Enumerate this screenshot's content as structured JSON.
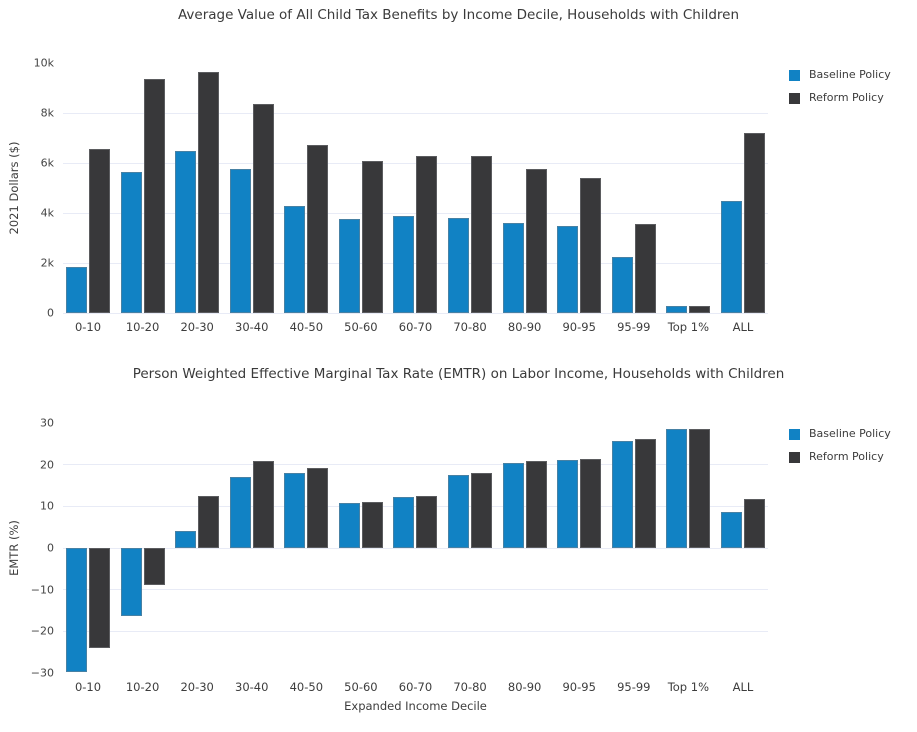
{
  "colors": {
    "baseline": "#1182c4",
    "reform": "#38383a",
    "grid": "#e8ebf6",
    "title_text": "#3a3a3a",
    "tick_text": "#444444"
  },
  "chart_data": [
    {
      "type": "bar",
      "title": "Average Value of All Child Tax Benefits by Income Decile, Households with Children",
      "ylabel": "2021 Dollars ($)",
      "xlabel": "",
      "grid": true,
      "legend_position": "right",
      "categories": [
        "0-10",
        "10-20",
        "20-30",
        "30-40",
        "40-50",
        "50-60",
        "60-70",
        "70-80",
        "80-90",
        "90-95",
        "95-99",
        "Top 1%",
        "ALL"
      ],
      "series": [
        {
          "name": "Baseline Policy",
          "color": "#1182c4",
          "values": [
            1850,
            5650,
            6500,
            5750,
            4300,
            3750,
            3890,
            3800,
            3590,
            3500,
            2240,
            280,
            4480
          ]
        },
        {
          "name": "Reform Policy",
          "color": "#38383a",
          "values": [
            6550,
            9350,
            9650,
            8350,
            6720,
            6100,
            6280,
            6300,
            5760,
            5400,
            3560,
            300,
            7200
          ]
        }
      ],
      "ylim": [
        0,
        10000
      ],
      "yticks": [
        {
          "v": 0,
          "label": "0"
        },
        {
          "v": 2000,
          "label": "2k"
        },
        {
          "v": 4000,
          "label": "4k"
        },
        {
          "v": 6000,
          "label": "6k"
        },
        {
          "v": 8000,
          "label": "8k"
        },
        {
          "v": 10000,
          "label": "10k"
        }
      ]
    },
    {
      "type": "bar",
      "title": "Person Weighted Effective Marginal Tax Rate (EMTR) on Labor Income, Households with Children",
      "ylabel": "EMTR (%)",
      "xlabel": "Expanded Income Decile",
      "grid": true,
      "legend_position": "right",
      "categories": [
        "0-10",
        "10-20",
        "20-30",
        "30-40",
        "40-50",
        "50-60",
        "60-70",
        "70-80",
        "80-90",
        "90-95",
        "95-99",
        "Top 1%",
        "ALL"
      ],
      "series": [
        {
          "name": "Baseline Policy",
          "color": "#1182c4",
          "values": [
            -29.8,
            -16.4,
            4.2,
            17.0,
            18.1,
            10.9,
            12.2,
            17.5,
            20.3,
            21.1,
            25.8,
            28.5,
            8.7
          ]
        },
        {
          "name": "Reform Policy",
          "color": "#38383a",
          "values": [
            -24.1,
            -8.8,
            12.4,
            20.8,
            19.1,
            11.1,
            12.4,
            17.9,
            21.0,
            21.4,
            26.2,
            28.5,
            11.8
          ]
        }
      ],
      "ylim": [
        -30,
        30
      ],
      "yticks": [
        {
          "v": -30,
          "label": "−30"
        },
        {
          "v": -20,
          "label": "−20"
        },
        {
          "v": -10,
          "label": "−10"
        },
        {
          "v": 0,
          "label": "0"
        },
        {
          "v": 10,
          "label": "10"
        },
        {
          "v": 20,
          "label": "20"
        },
        {
          "v": 30,
          "label": "30"
        }
      ]
    }
  ]
}
